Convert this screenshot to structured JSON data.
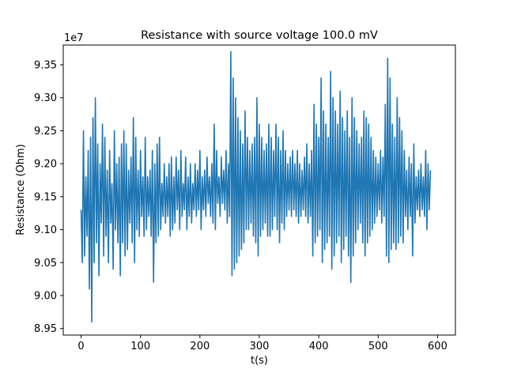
{
  "chart_data": {
    "type": "line",
    "title": "Resistance with source voltage 100.0 mV",
    "xlabel": "t(s)",
    "ylabel": "Resistance (Ohm)",
    "y_scale_label": "1e7",
    "xlim": [
      -30,
      630
    ],
    "ylim": [
      8.94,
      9.38
    ],
    "x_ticks": [
      0,
      100,
      200,
      300,
      400,
      500,
      600
    ],
    "x_tick_labels": [
      "0",
      "100",
      "200",
      "300",
      "400",
      "500",
      "600"
    ],
    "y_ticks": [
      8.95,
      9.0,
      9.05,
      9.1,
      9.15,
      9.2,
      9.25,
      9.3,
      9.35
    ],
    "y_tick_labels": [
      "8.95",
      "9.00",
      "9.05",
      "9.10",
      "9.15",
      "9.20",
      "9.25",
      "9.30",
      "9.35"
    ],
    "grid": false,
    "series": [
      {
        "color": "#1f77b4",
        "x_start": 0,
        "x_step": 2,
        "values": [
          9.13,
          9.05,
          9.25,
          9.06,
          9.18,
          9.09,
          9.22,
          9.01,
          9.24,
          8.96,
          9.27,
          9.05,
          9.3,
          9.08,
          9.23,
          9.03,
          9.2,
          9.11,
          9.26,
          9.06,
          9.24,
          9.09,
          9.19,
          9.05,
          9.22,
          9.11,
          9.17,
          9.04,
          9.25,
          9.1,
          9.2,
          9.08,
          9.21,
          9.03,
          9.23,
          9.08,
          9.25,
          9.06,
          9.23,
          9.07,
          9.19,
          9.11,
          9.21,
          9.08,
          9.27,
          9.05,
          9.24,
          9.1,
          9.19,
          9.09,
          9.22,
          9.12,
          9.18,
          9.09,
          9.24,
          9.1,
          9.18,
          9.12,
          9.19,
          9.09,
          9.22,
          9.02,
          9.2,
          9.08,
          9.23,
          9.09,
          9.24,
          9.1,
          9.17,
          9.12,
          9.2,
          9.11,
          9.18,
          9.12,
          9.2,
          9.09,
          9.21,
          9.1,
          9.18,
          9.11,
          9.21,
          9.13,
          9.19,
          9.1,
          9.22,
          9.12,
          9.17,
          9.13,
          9.21,
          9.1,
          9.18,
          9.12,
          9.2,
          9.11,
          9.17,
          9.13,
          9.2,
          9.12,
          9.19,
          9.13,
          9.22,
          9.1,
          9.18,
          9.13,
          9.19,
          9.12,
          9.21,
          9.14,
          9.18,
          9.12,
          9.2,
          9.11,
          9.26,
          9.1,
          9.22,
          9.14,
          9.18,
          9.12,
          9.21,
          9.14,
          9.19,
          9.13,
          9.22,
          9.11,
          9.2,
          9.12,
          9.37,
          9.03,
          9.33,
          9.04,
          9.3,
          9.05,
          9.27,
          9.06,
          9.25,
          9.07,
          9.23,
          9.08,
          9.28,
          9.1,
          9.24,
          9.1,
          9.22,
          9.11,
          9.23,
          9.09,
          9.24,
          9.08,
          9.3,
          9.06,
          9.26,
          9.09,
          9.24,
          9.1,
          9.22,
          9.11,
          9.23,
          9.09,
          9.26,
          9.09,
          9.24,
          9.1,
          9.22,
          9.12,
          9.26,
          9.1,
          9.24,
          9.08,
          9.22,
          9.11,
          9.25,
          9.1,
          9.22,
          9.12,
          9.2,
          9.13,
          9.21,
          9.12,
          9.22,
          9.13,
          9.2,
          9.12,
          9.22,
          9.11,
          9.2,
          9.12,
          9.19,
          9.13,
          9.21,
          9.12,
          9.23,
          9.11,
          9.2,
          9.12,
          9.22,
          9.06,
          9.29,
          9.08,
          9.26,
          9.09,
          9.24,
          9.1,
          9.33,
          9.05,
          9.28,
          9.07,
          9.26,
          9.08,
          9.24,
          9.09,
          9.34,
          9.04,
          9.3,
          9.06,
          9.28,
          9.08,
          9.26,
          9.09,
          9.31,
          9.05,
          9.27,
          9.07,
          9.25,
          9.09,
          9.28,
          9.06,
          9.24,
          9.02,
          9.3,
          9.06,
          9.27,
          9.08,
          9.25,
          9.1,
          9.23,
          9.11,
          9.24,
          9.08,
          9.28,
          9.06,
          9.27,
          9.08,
          9.26,
          9.09,
          9.24,
          9.1,
          9.22,
          9.11,
          9.21,
          9.12,
          9.2,
          9.13,
          9.22,
          9.11,
          9.21,
          9.12,
          9.29,
          9.06,
          9.36,
          9.05,
          9.33,
          9.07,
          9.26,
          9.08,
          9.24,
          9.07,
          9.3,
          9.08,
          9.27,
          9.09,
          9.25,
          9.08,
          9.22,
          9.12,
          9.19,
          9.1,
          9.21,
          9.12,
          9.2,
          9.06,
          9.23,
          9.11,
          9.18,
          9.13,
          9.19,
          9.12,
          9.2,
          9.13,
          9.18,
          9.12,
          9.22,
          9.1,
          9.2,
          9.13,
          9.19
        ]
      }
    ]
  }
}
